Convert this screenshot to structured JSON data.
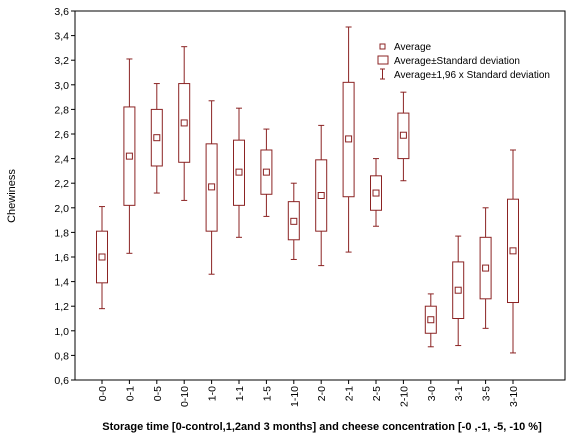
{
  "chart_data": {
    "type": "boxplot",
    "xlabel": "Storage time [0-control,1,2and 3 months] and cheese concentration [-0 ,-1, -5, -10 %]",
    "ylabel": "Chewiness",
    "ylim": [
      0.6,
      3.6
    ],
    "yticks": [
      "0,6",
      "0,8",
      "1,0",
      "1,2",
      "1,4",
      "1,6",
      "1,8",
      "2,0",
      "2,2",
      "2,4",
      "2,6",
      "2,8",
      "3,0",
      "3,2",
      "3,4",
      "3,6"
    ],
    "grid": false,
    "legend_position": "top-right",
    "legend": [
      {
        "key": "mean",
        "label": "Average"
      },
      {
        "key": "sd",
        "label": "Average±Standard deviation"
      },
      {
        "key": "ci",
        "label": "Average±1,96 x Standard deviation"
      }
    ],
    "series_color": "#8b2323",
    "categories": [
      "0-0",
      "0-1",
      "0-5",
      "0-10",
      "1-0",
      "1-1",
      "1-5",
      "1-10",
      "2-0",
      "2-1",
      "2-5",
      "2-10",
      "3-0",
      "3-1",
      "3-5",
      "3-10"
    ],
    "mean": [
      1.6,
      2.42,
      2.57,
      2.69,
      2.17,
      2.29,
      2.29,
      1.89,
      2.1,
      2.56,
      2.12,
      2.59,
      1.09,
      1.33,
      1.51,
      1.65
    ],
    "sd_low": [
      1.39,
      2.02,
      2.34,
      2.37,
      1.81,
      2.02,
      2.11,
      1.74,
      1.81,
      2.09,
      1.98,
      2.4,
      0.98,
      1.1,
      1.26,
      1.23
    ],
    "sd_high": [
      1.81,
      2.82,
      2.8,
      3.01,
      2.52,
      2.55,
      2.47,
      2.05,
      2.39,
      3.02,
      2.26,
      2.77,
      1.2,
      1.56,
      1.76,
      2.07
    ],
    "ci_low": [
      1.18,
      1.63,
      2.12,
      2.06,
      1.46,
      1.76,
      1.93,
      1.58,
      1.53,
      1.64,
      1.85,
      2.22,
      0.87,
      0.88,
      1.02,
      0.82
    ],
    "ci_high": [
      2.01,
      3.21,
      3.01,
      3.31,
      2.87,
      2.81,
      2.64,
      2.2,
      2.67,
      3.47,
      2.4,
      2.94,
      1.3,
      1.77,
      2.0,
      2.47
    ]
  }
}
